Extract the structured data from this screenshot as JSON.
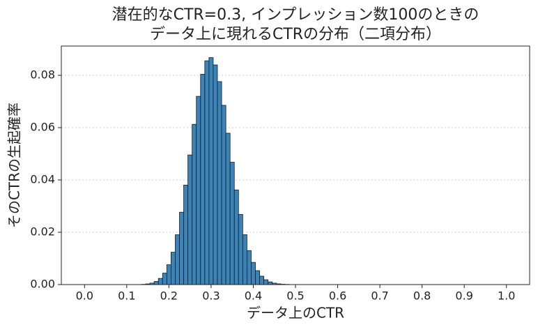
{
  "chart_data": {
    "type": "histogram",
    "title": [
      "潜在的なCTR=0.3, インプレッション数100のときの",
      "データ上に現れるCTRの分布（二項分布）"
    ],
    "xlabel": "データ上のCTR",
    "ylabel": "そのCTRの生起確率",
    "bins": [
      0.135,
      0.145,
      0.155,
      0.165,
      0.175,
      0.185,
      0.195,
      0.205,
      0.215,
      0.225,
      0.235,
      0.245,
      0.255,
      0.265,
      0.275,
      0.285,
      0.295,
      0.305,
      0.315,
      0.325,
      0.335,
      0.345,
      0.355,
      0.365,
      0.375,
      0.385,
      0.395,
      0.405,
      0.415,
      0.425,
      0.435,
      0.445,
      0.455,
      0.465,
      0.475,
      0.485,
      0.495,
      0.505
    ],
    "values": [
      0.0001,
      0.00025,
      0.00056,
      0.00119,
      0.00236,
      0.00437,
      0.00758,
      0.01237,
      0.01904,
      0.02767,
      0.03804,
      0.04956,
      0.06127,
      0.07197,
      0.08041,
      0.08556,
      0.08678,
      0.08398,
      0.07761,
      0.06854,
      0.05788,
      0.04678,
      0.0362,
      0.02683,
      0.01907,
      0.01299,
      0.00849,
      0.00533,
      0.00321,
      0.00185,
      0.00103,
      0.00055,
      0.00028,
      0.00014,
      7e-05,
      3e-05,
      1e-05
    ],
    "color": "#3a84b9",
    "edgecolor": "#1a1a1a",
    "xlim": [
      -0.055,
      1.055
    ],
    "xticks": [
      {
        "value": 0,
        "label": "0.0"
      },
      0.1,
      0.2,
      0.3,
      0.4,
      0.5,
      0.6,
      0.7,
      0.8,
      0.9,
      {
        "value": 1,
        "label": "1.0"
      }
    ],
    "ylim": [
      0,
      0.0912
    ],
    "yticks": [
      {
        "value": 0,
        "label": "0.00"
      },
      0.02,
      0.04,
      0.06,
      0.08
    ],
    "grid": true
  }
}
